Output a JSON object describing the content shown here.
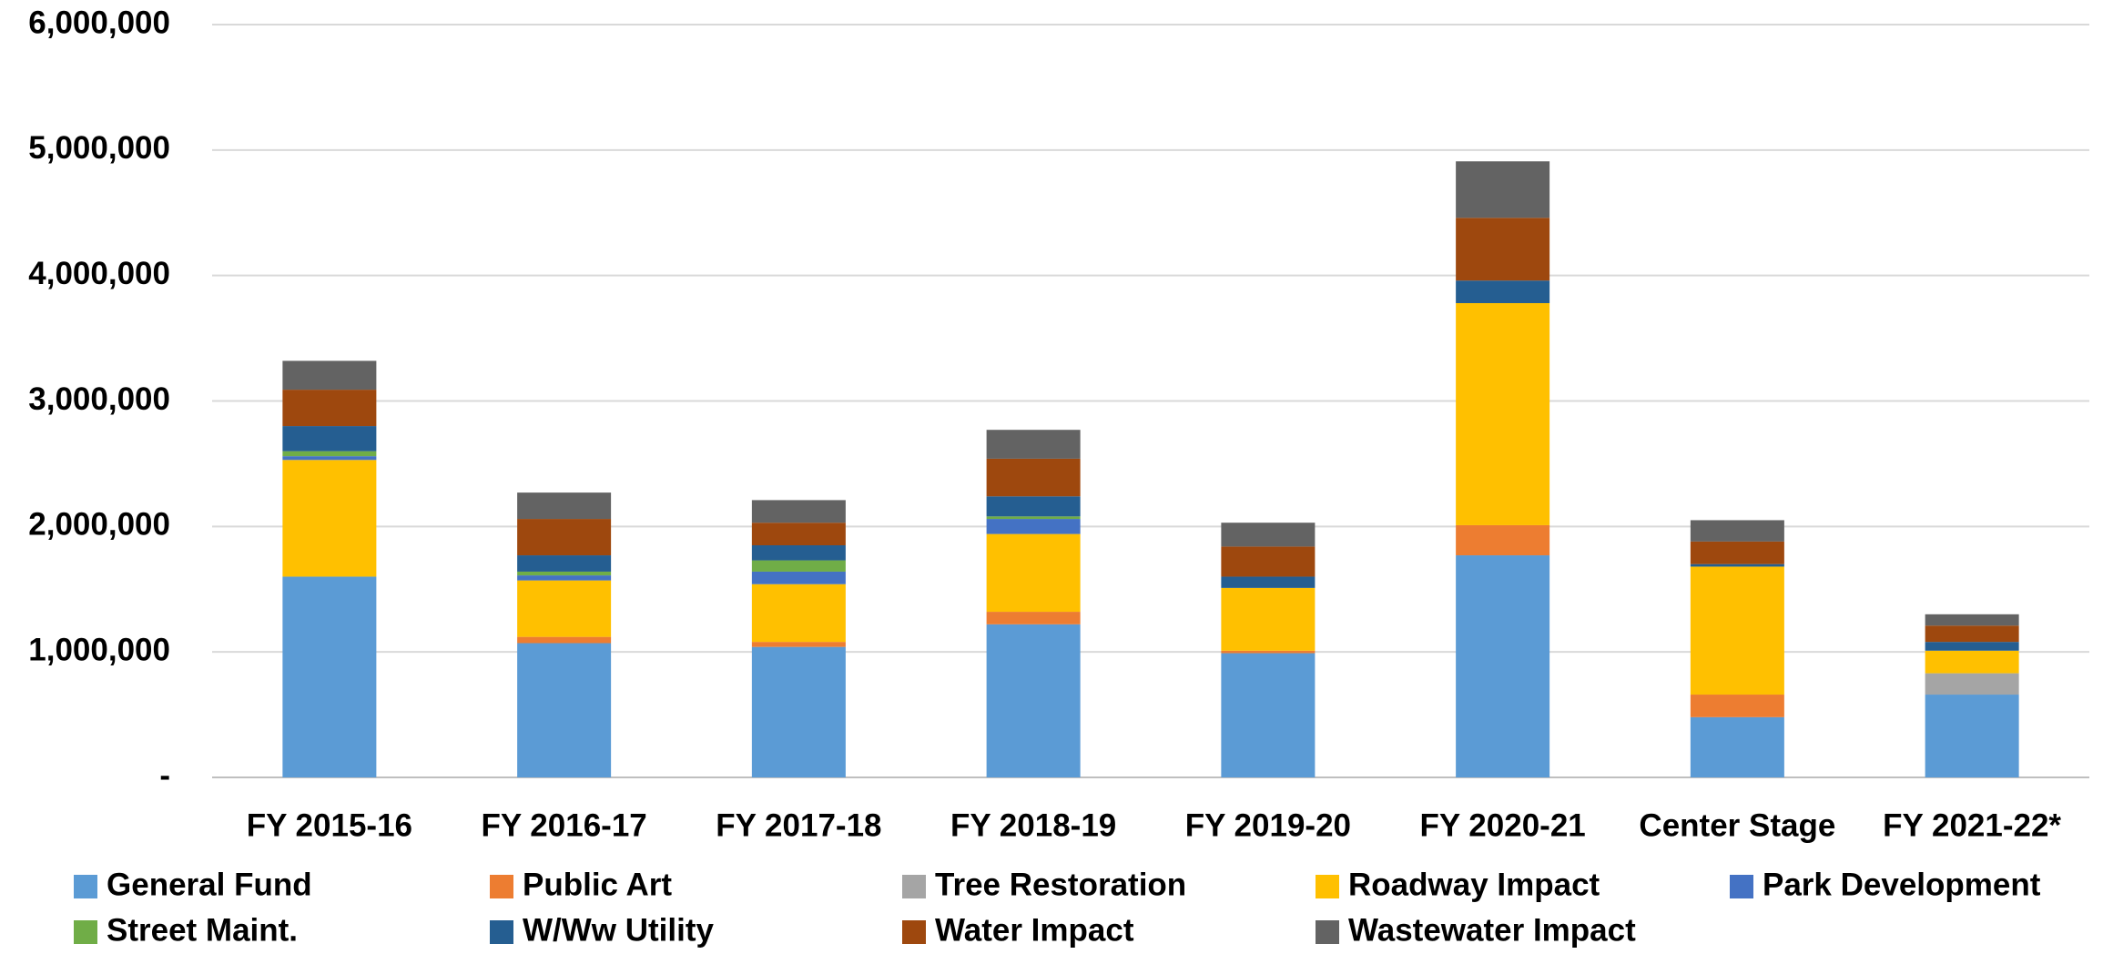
{
  "chart_data": {
    "type": "stacked_bar",
    "categories": [
      "FY 2015-16",
      "FY 2016-17",
      "FY 2017-18",
      "FY 2018-19",
      "FY 2019-20",
      "FY 2020-21",
      "Center Stage",
      "FY 2021-22*"
    ],
    "series": [
      {
        "name": "General Fund",
        "color": "#5b9bd5",
        "values": [
          1600000,
          1070000,
          1040000,
          1220000,
          990000,
          1770000,
          480000,
          660000
        ]
      },
      {
        "name": "Public Art",
        "color": "#ed7d31",
        "values": [
          0,
          50000,
          40000,
          100000,
          20000,
          240000,
          180000,
          0
        ]
      },
      {
        "name": "Tree Restoration",
        "color": "#a5a5a5",
        "values": [
          0,
          0,
          0,
          0,
          0,
          0,
          0,
          170000
        ]
      },
      {
        "name": "Roadway Impact",
        "color": "#ffc000",
        "values": [
          930000,
          450000,
          460000,
          620000,
          500000,
          1770000,
          1020000,
          180000
        ]
      },
      {
        "name": "Park Development",
        "color": "#4472c4",
        "values": [
          30000,
          40000,
          100000,
          120000,
          0,
          0,
          0,
          0
        ]
      },
      {
        "name": "Street Maint.",
        "color": "#70ad47",
        "values": [
          40000,
          30000,
          90000,
          20000,
          0,
          0,
          0,
          0
        ]
      },
      {
        "name": "W/Ww Utility",
        "color": "#255e91",
        "values": [
          200000,
          130000,
          120000,
          160000,
          90000,
          180000,
          20000,
          70000
        ]
      },
      {
        "name": "Water Impact",
        "color": "#9e480e",
        "values": [
          290000,
          290000,
          180000,
          300000,
          240000,
          500000,
          180000,
          130000
        ]
      },
      {
        "name": "Wastewater Impact",
        "color": "#636363",
        "values": [
          230000,
          210000,
          180000,
          230000,
          190000,
          450000,
          170000,
          90000
        ]
      }
    ],
    "ylim": [
      0,
      6000000
    ],
    "yticks": [
      {
        "value": 0,
        "label": "-"
      },
      {
        "value": 1000000,
        "label": "1,000,000"
      },
      {
        "value": 2000000,
        "label": "2,000,000"
      },
      {
        "value": 3000000,
        "label": "3,000,000"
      },
      {
        "value": 4000000,
        "label": "4,000,000"
      },
      {
        "value": 5000000,
        "label": "5,000,000"
      },
      {
        "value": 6000000,
        "label": "6,000,000"
      }
    ],
    "grid": true
  }
}
